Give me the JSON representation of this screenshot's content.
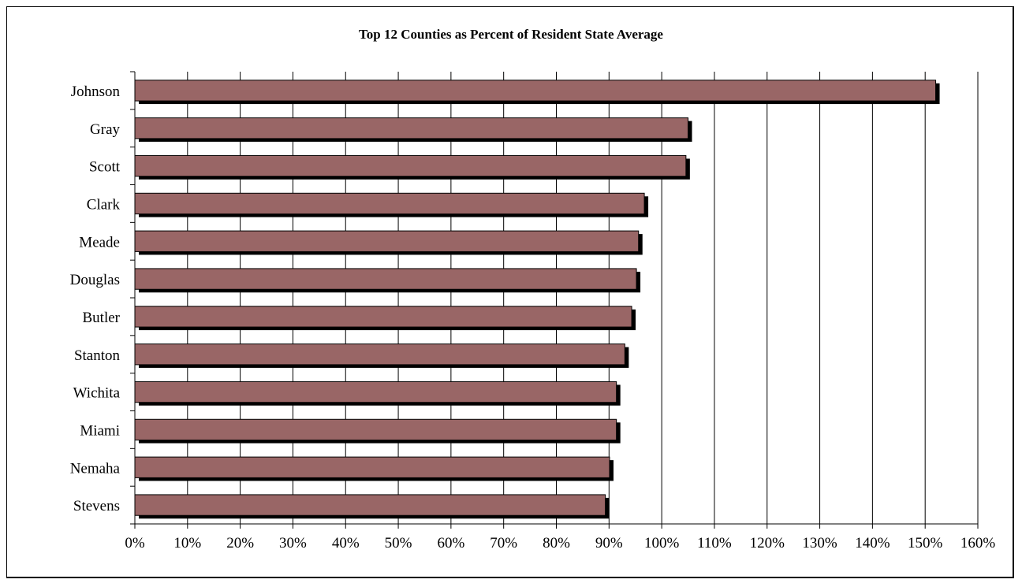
{
  "chart_data": {
    "type": "bar",
    "orientation": "horizontal",
    "title": "Top 12 Counties as Percent of Resident State Average",
    "categories": [
      "Johnson",
      "Gray",
      "Scott",
      "Clark",
      "Meade",
      "Douglas",
      "Butler",
      "Stanton",
      "Wichita",
      "Miami",
      "Nemaha",
      "Stevens"
    ],
    "values": [
      152,
      105,
      104.6,
      96.7,
      95.6,
      95.2,
      94.3,
      93,
      91.4,
      91.4,
      90.1,
      89.3
    ],
    "xlim": [
      0,
      160
    ],
    "x_ticks": [
      "0%",
      "10%",
      "20%",
      "30%",
      "40%",
      "50%",
      "60%",
      "70%",
      "80%",
      "90%",
      "100%",
      "110%",
      "120%",
      "130%",
      "140%",
      "150%",
      "160%"
    ],
    "grid": "vertical",
    "bar_color": "#996666",
    "shadow_color": "#000000",
    "legend": "none"
  }
}
